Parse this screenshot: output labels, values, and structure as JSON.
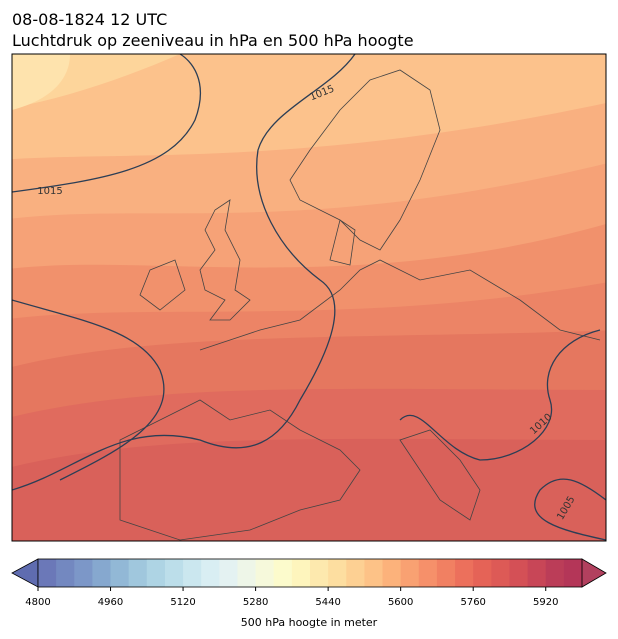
{
  "header": {
    "line1": "08-08-1824 12 UTC",
    "line2": "Luchtdruk op zeeniveau in hPa en 500 hPa hoogte"
  },
  "map": {
    "contour_labels": [
      "1015",
      "1015",
      "1010",
      "1005"
    ]
  },
  "colorbar": {
    "label": "500 hPa hoogte in meter",
    "lim": [
      4800,
      6000
    ],
    "ticks": [
      4800,
      4960,
      5120,
      5280,
      5440,
      5600,
      5760,
      5920
    ],
    "colors": [
      "#6b78b8",
      "#7388c0",
      "#7c97c8",
      "#86a8cf",
      "#92b8d6",
      "#a0c7dd",
      "#aed4e4",
      "#bcdeea",
      "#cbe7ef",
      "#d9eef3",
      "#e4f2f2",
      "#eef6e8",
      "#f6f9db",
      "#fcfbcc",
      "#fef5bd",
      "#fde9ae",
      "#fddea0",
      "#fdd093",
      "#fdc287",
      "#fcb27b",
      "#f9a172",
      "#f6906a",
      "#f18062",
      "#ec705c",
      "#e56357",
      "#dd5a56",
      "#d45056",
      "#c84657",
      "#bb3d58",
      "#b43658"
    ]
  }
}
